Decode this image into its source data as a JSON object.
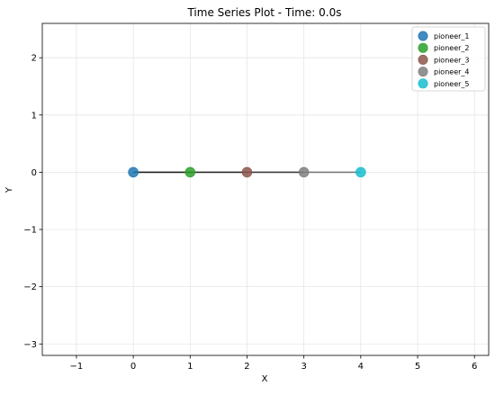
{
  "chart_data": {
    "type": "scatter",
    "title": "Time Series Plot - Time: 0.0s",
    "xlabel": "X",
    "ylabel": "Y",
    "xlim": [
      -1.6,
      6.25
    ],
    "ylim": [
      -3.2,
      2.6
    ],
    "xticks": [
      -1,
      0,
      1,
      2,
      3,
      4,
      5,
      6
    ],
    "yticks": [
      -3,
      -2,
      -1,
      0,
      1,
      2
    ],
    "xtick_labels": [
      "−1",
      "0",
      "1",
      "2",
      "3",
      "4",
      "5",
      "6"
    ],
    "ytick_labels": [
      "−3",
      "−2",
      "−1",
      "0",
      "1",
      "2"
    ],
    "grid": true,
    "legend_position": "top-right",
    "connecting_line": {
      "x": [
        0,
        1,
        2,
        3,
        4
      ],
      "y": [
        0,
        0,
        0,
        0,
        0
      ],
      "colors": [
        "#1f1f1f",
        "#2a2a2a",
        "#3a3a3a",
        "#7a7a7a"
      ]
    },
    "series": [
      {
        "name": "pioneer_1",
        "color": "#1f77b4",
        "x": [
          0
        ],
        "y": [
          0
        ]
      },
      {
        "name": "pioneer_2",
        "color": "#2ca02c",
        "x": [
          1
        ],
        "y": [
          0
        ]
      },
      {
        "name": "pioneer_3",
        "color": "#8c564b",
        "x": [
          2
        ],
        "y": [
          0
        ]
      },
      {
        "name": "pioneer_4",
        "color": "#7f7f7f",
        "x": [
          3
        ],
        "y": [
          0
        ]
      },
      {
        "name": "pioneer_5",
        "color": "#17becf",
        "x": [
          4
        ],
        "y": [
          0
        ]
      }
    ]
  }
}
